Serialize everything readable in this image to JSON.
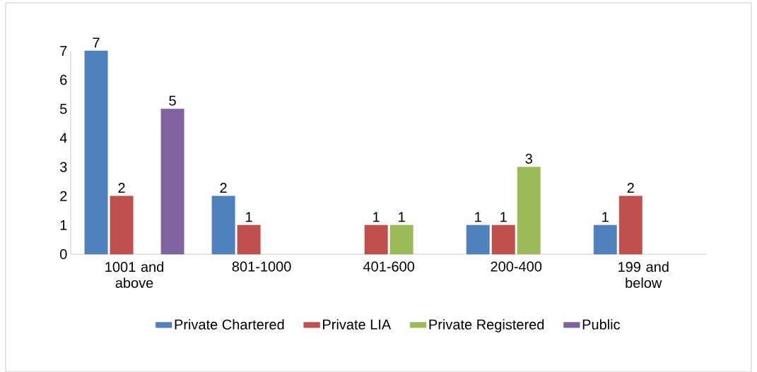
{
  "chart_data": {
    "type": "bar",
    "categories": [
      "1001 and above",
      "801-1000",
      "401-600",
      "200-400",
      "199 and below"
    ],
    "series": [
      {
        "name": "Private Chartered",
        "color": "#4f81bd",
        "values": [
          7,
          2,
          null,
          1,
          1
        ]
      },
      {
        "name": "Private LIA",
        "color": "#c0504d",
        "values": [
          2,
          1,
          1,
          1,
          2
        ]
      },
      {
        "name": "Private Registered",
        "color": "#9bbb59",
        "values": [
          null,
          null,
          1,
          3,
          null
        ]
      },
      {
        "name": "Public",
        "color": "#8064a2",
        "values": [
          5,
          null,
          null,
          null,
          null
        ]
      }
    ],
    "ylim": [
      0,
      7
    ],
    "yticks": [
      0,
      1,
      2,
      3,
      4,
      5,
      6,
      7
    ],
    "data_labels": true,
    "legend": "bottom",
    "grid": false
  }
}
